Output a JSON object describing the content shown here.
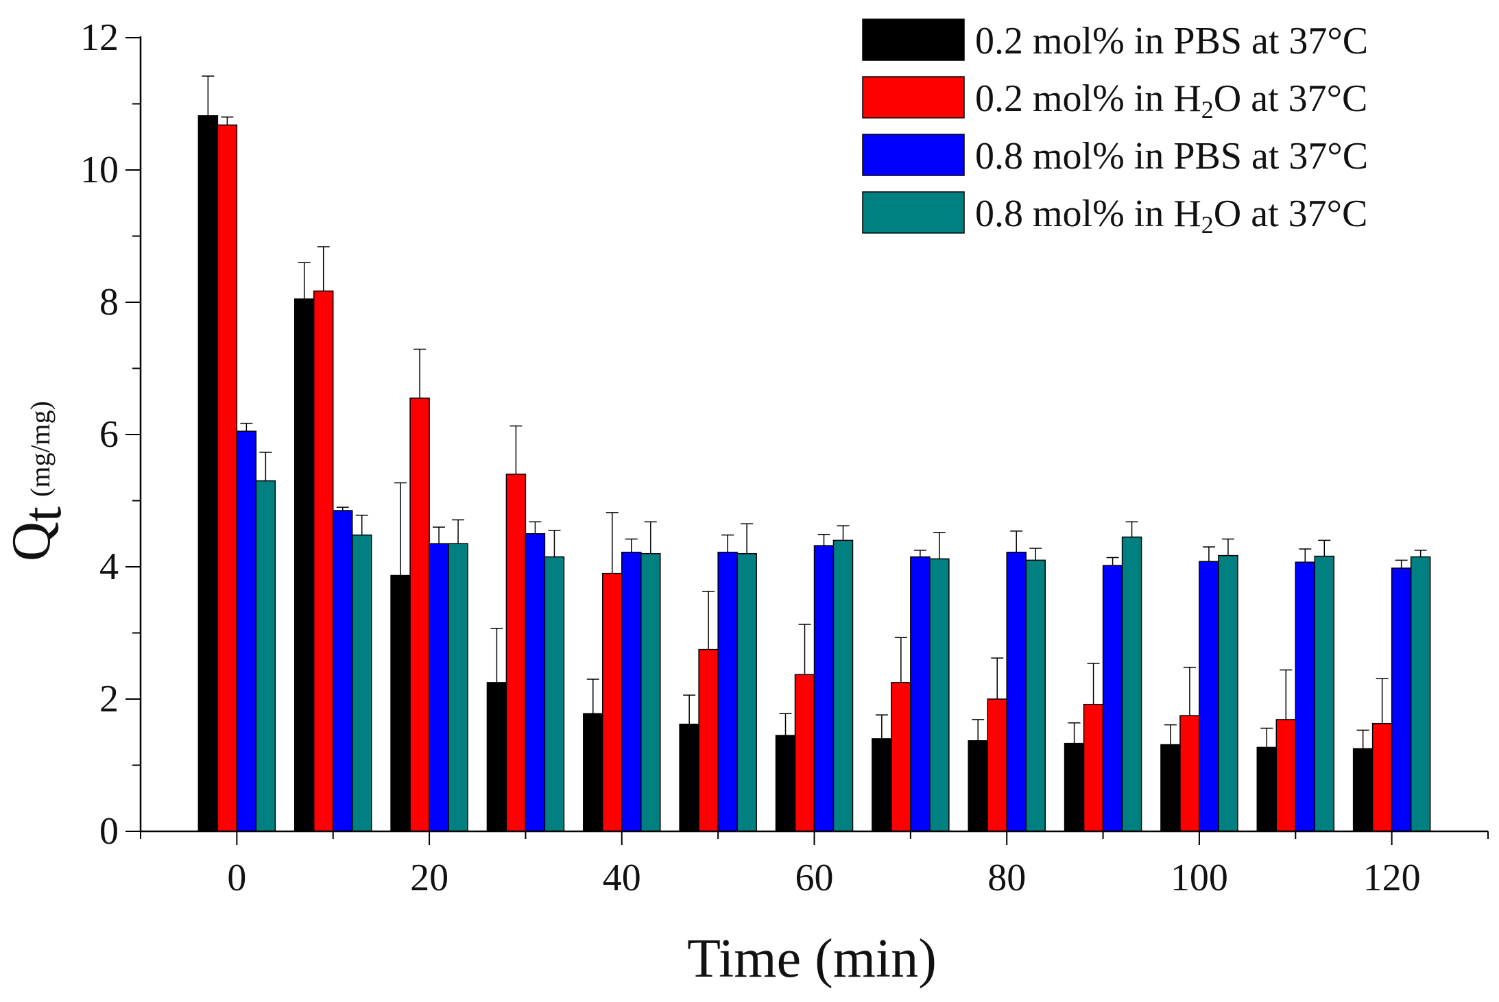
{
  "chart_data": {
    "type": "bar",
    "title": "",
    "xlabel": "Time (min)",
    "ylabel": {
      "symbol": "Q",
      "subscript": "t",
      "unit": "(mg/mg)"
    },
    "categories": [
      0,
      10,
      20,
      30,
      40,
      50,
      60,
      70,
      80,
      90,
      100,
      110,
      120
    ],
    "x_ticks": [
      "0",
      "20",
      "40",
      "60",
      "80",
      "100",
      "120"
    ],
    "xlim": [
      -10,
      130
    ],
    "ylim": [
      0,
      12
    ],
    "y_ticks": [
      "0",
      "2",
      "4",
      "6",
      "8",
      "10",
      "12"
    ],
    "grid": false,
    "legend_position": "top-right",
    "error_bars": "positive",
    "series": [
      {
        "name": "0.2 mol% in PBS at 37°C",
        "legend": {
          "prefix": "0.2 mol% in PBS at 37",
          "degree": "°C",
          "chem": ""
        },
        "color": "#000000",
        "values": [
          10.82,
          8.05,
          3.87,
          2.25,
          1.78,
          1.62,
          1.45,
          1.4,
          1.37,
          1.33,
          1.31,
          1.27,
          1.25
        ],
        "errors": [
          0.6,
          0.55,
          1.4,
          0.82,
          0.52,
          0.44,
          0.33,
          0.36,
          0.32,
          0.31,
          0.3,
          0.29,
          0.28
        ]
      },
      {
        "name": "0.2 mol% in H2O at 37°C",
        "legend": {
          "prefix": "0.2 mol% in H",
          "sub": "2",
          "suffix": "O at 37",
          "degree": "°C"
        },
        "color": "#ff0000",
        "values": [
          10.68,
          8.17,
          6.55,
          5.4,
          3.9,
          2.75,
          2.37,
          2.25,
          2.0,
          1.92,
          1.75,
          1.69,
          1.63
        ],
        "errors": [
          0.12,
          0.67,
          0.74,
          0.73,
          0.92,
          0.88,
          0.76,
          0.68,
          0.62,
          0.62,
          0.73,
          0.75,
          0.68
        ]
      },
      {
        "name": "0.8 mol% in PBS at 37°C",
        "legend": {
          "prefix": "0.8 mol% in PBS at 37",
          "degree": "°C",
          "chem": ""
        },
        "color": "#0000ff",
        "values": [
          6.05,
          4.85,
          4.35,
          4.5,
          4.22,
          4.22,
          4.32,
          4.15,
          4.22,
          4.02,
          4.08,
          4.07,
          3.98
        ],
        "errors": [
          0.12,
          0.05,
          0.25,
          0.18,
          0.2,
          0.26,
          0.17,
          0.1,
          0.32,
          0.12,
          0.22,
          0.2,
          0.12
        ]
      },
      {
        "name": "0.8 mol% in H2O at 37°C",
        "legend": {
          "prefix": "0.8 mol% in H",
          "sub": "2",
          "suffix": "O at 37",
          "degree": "°C"
        },
        "color": "#008080",
        "values": [
          5.3,
          4.48,
          4.35,
          4.15,
          4.2,
          4.2,
          4.4,
          4.12,
          4.1,
          4.45,
          4.17,
          4.16,
          4.15
        ],
        "errors": [
          0.43,
          0.3,
          0.36,
          0.4,
          0.48,
          0.45,
          0.22,
          0.4,
          0.18,
          0.23,
          0.25,
          0.24,
          0.1
        ]
      }
    ]
  }
}
